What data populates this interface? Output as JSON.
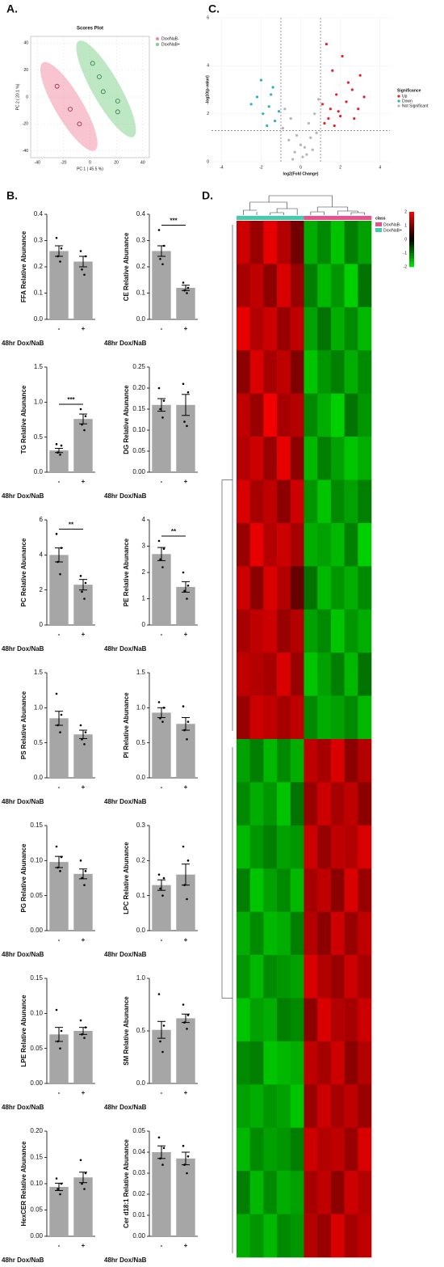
{
  "panel_labels": [
    "A.",
    "B.",
    "C.",
    "D."
  ],
  "chart_data": [
    {
      "type": "scatter",
      "title": "Scores Plot",
      "xlabel": "PC 1 ( 45.5 %)",
      "ylabel": "PC 2 ( 20.1 %)",
      "xlim": [
        -45,
        45
      ],
      "ylim": [
        -45,
        45
      ],
      "xticks": [
        -40,
        -20,
        0,
        20,
        40
      ],
      "yticks": [
        -40,
        -20,
        0,
        20,
        40
      ],
      "grid": true,
      "series": [
        {
          "name": "Dox/NaB-",
          "color": "#f08aa0",
          "x": [
            -25,
            -15,
            -8
          ],
          "y": [
            8,
            -9,
            -20
          ]
        },
        {
          "name": "Dox/NaB+",
          "color": "#7dd08a",
          "x": [
            2,
            7,
            10,
            21,
            21
          ],
          "y": [
            25,
            15,
            4,
            -3,
            -11
          ]
        }
      ]
    },
    {
      "type": "volcano",
      "xlabel": "log2(Fold Change)",
      "ylabel": "-log10(p-value)",
      "legend_title": "Significance",
      "xlim": [
        -4.5,
        4.5
      ],
      "ylim": [
        0,
        6
      ],
      "xticks": [
        -4,
        -2,
        0,
        2,
        4
      ],
      "yticks": [
        0,
        2,
        4,
        6
      ],
      "vlines": [
        -1,
        1
      ],
      "hline": 1.3,
      "series": [
        {
          "name": "Up",
          "color": "#e8202a",
          "x": [
            1.2,
            1.5,
            1.8,
            2.0,
            2.3,
            2.6,
            1.4,
            2.9,
            3.2,
            1.6,
            2.1,
            1.3,
            2.4,
            1.9,
            3.0,
            1.7,
            2.7,
            1.1
          ],
          "y": [
            1.6,
            2.2,
            2.8,
            1.9,
            2.5,
            3.0,
            1.8,
            2.2,
            2.7,
            3.8,
            4.4,
            4.9,
            3.3,
            2.1,
            3.6,
            1.5,
            1.8,
            2.4
          ]
        },
        {
          "name": "Down",
          "color": "#2ab0c8",
          "x": [
            -1.3,
            -1.6,
            -1.9,
            -2.2,
            -1.4,
            -2.0,
            -1.1,
            -1.7,
            -2.5,
            -1.5
          ],
          "y": [
            1.7,
            2.3,
            2.0,
            2.7,
            3.1,
            3.4,
            2.1,
            1.5,
            2.4,
            2.8
          ]
        },
        {
          "name": "Not Significant",
          "color": "#b5b5b5",
          "x": [
            -0.3,
            0.2,
            0.5,
            -0.6,
            0.1,
            0.8,
            -0.9,
            0.4,
            -0.2,
            0.7,
            -0.5,
            0.3,
            0.9,
            -0.8,
            0.0,
            0.6,
            -0.4
          ],
          "y": [
            0.4,
            0.6,
            1.0,
            0.9,
            0.2,
            1.2,
            1.4,
            1.6,
            1.1,
            2.0,
            1.8,
            0.3,
            2.6,
            2.2,
            0.7,
            0.5,
            0.1
          ]
        }
      ]
    },
    {
      "type": "bar",
      "ylabel": "FFA Relative Abunance",
      "xlabel": "48hr Dox/NaB",
      "categories": [
        "-",
        "+"
      ],
      "values": [
        0.26,
        0.22
      ],
      "errors": [
        0.02,
        0.02
      ],
      "points": [
        [
          0.31,
          0.27,
          0.24,
          0.22
        ],
        [
          0.26,
          0.24,
          0.19,
          0.17
        ]
      ],
      "color": "#a6a6a6",
      "ylim": [
        0,
        0.4
      ],
      "yticks": [
        {
          "value": 0,
          "label": "0.0"
        },
        0.1,
        0.2,
        0.3,
        0.4
      ]
    },
    {
      "type": "bar",
      "ylabel": "CE Relative Abunance",
      "xlabel": "48hr Dox/NaB",
      "categories": [
        "-",
        "+"
      ],
      "values": [
        0.26,
        0.12
      ],
      "errors": [
        0.02,
        0.01
      ],
      "points": [
        [
          0.34,
          0.28,
          0.23,
          0.21
        ],
        [
          0.14,
          0.12,
          0.11,
          0.1
        ]
      ],
      "color": "#a6a6a6",
      "significance": "***",
      "ylim": [
        0,
        0.4
      ],
      "yticks": [
        {
          "value": 0,
          "label": "0.0"
        },
        0.1,
        0.2,
        0.3,
        0.4
      ]
    },
    {
      "type": "bar",
      "ylabel": "TG Relative Abunance",
      "xlabel": "48hr Dox/NaB",
      "categories": [
        "-",
        "+"
      ],
      "values": [
        0.31,
        0.76
      ],
      "errors": [
        0.03,
        0.07
      ],
      "points": [
        [
          0.4,
          0.38,
          0.28,
          0.25
        ],
        [
          0.9,
          0.8,
          0.68,
          0.6
        ]
      ],
      "color": "#a6a6a6",
      "significance": "***",
      "ylim": [
        0,
        1.5
      ],
      "yticks": [
        {
          "value": 0,
          "label": "0.0"
        },
        0.5,
        {
          "value": 1,
          "label": "1.0"
        },
        1.5
      ]
    },
    {
      "type": "bar",
      "ylabel": "DG Relative Abunance",
      "xlabel": "48hr Dox/NaB",
      "categories": [
        "-",
        "+"
      ],
      "values": [
        0.16,
        0.16
      ],
      "errors": [
        0.015,
        0.025
      ],
      "points": [
        [
          0.2,
          0.17,
          0.15,
          0.13
        ],
        [
          0.21,
          0.19,
          0.12,
          0.11
        ]
      ],
      "color": "#a6a6a6",
      "ylim": [
        0,
        0.25
      ],
      "yticks": [
        {
          "value": 0,
          "label": "0.00"
        },
        0.05,
        {
          "value": 0.1,
          "label": "0.10"
        },
        0.15,
        {
          "value": 0.2,
          "label": "0.20"
        },
        0.25
      ]
    },
    {
      "type": "bar",
      "ylabel": "PC Relative Abunance",
      "xlabel": "48hr Dox/NaB",
      "categories": [
        "-",
        "+"
      ],
      "values": [
        4.0,
        2.3
      ],
      "errors": [
        0.4,
        0.3
      ],
      "points": [
        [
          5.2,
          4.4,
          3.6,
          2.9
        ],
        [
          2.8,
          2.4,
          1.9,
          1.5
        ]
      ],
      "color": "#a6a6a6",
      "significance": "**",
      "ylim": [
        0,
        6
      ],
      "yticks": [
        0,
        2,
        4,
        6
      ]
    },
    {
      "type": "bar",
      "ylabel": "PE Relative Abunance",
      "xlabel": "48hr Dox/NaB",
      "categories": [
        "-",
        "+"
      ],
      "values": [
        2.7,
        1.45
      ],
      "errors": [
        0.25,
        0.2
      ],
      "points": [
        [
          3.2,
          2.9,
          2.5,
          2.2
        ],
        [
          2.0,
          1.5,
          1.3,
          1.0
        ]
      ],
      "color": "#a6a6a6",
      "significance": "**",
      "ylim": [
        0,
        4
      ],
      "yticks": [
        0,
        1,
        2,
        3,
        4
      ]
    },
    {
      "type": "bar",
      "ylabel": "PS Relative Abunance",
      "xlabel": "48hr Dox/NaB",
      "categories": [
        "-",
        "+"
      ],
      "values": [
        0.85,
        0.62
      ],
      "errors": [
        0.1,
        0.06
      ],
      "points": [
        [
          1.2,
          0.9,
          0.75,
          0.65
        ],
        [
          0.75,
          0.65,
          0.55,
          0.48
        ]
      ],
      "color": "#a6a6a6",
      "ylim": [
        0,
        1.5
      ],
      "yticks": [
        {
          "value": 0,
          "label": "0.0"
        },
        0.5,
        {
          "value": 1,
          "label": "1.0"
        },
        1.5
      ]
    },
    {
      "type": "bar",
      "ylabel": "PI Relative Abunance",
      "xlabel": "48hr Dox/NaB",
      "categories": [
        "-",
        "+"
      ],
      "values": [
        0.93,
        0.77
      ],
      "errors": [
        0.07,
        0.09
      ],
      "points": [
        [
          1.08,
          1.0,
          0.85,
          0.8
        ],
        [
          1.02,
          0.8,
          0.68,
          0.55
        ]
      ],
      "color": "#a6a6a6",
      "ylim": [
        0,
        1.5
      ],
      "yticks": [
        {
          "value": 0,
          "label": "0.0"
        },
        0.5,
        {
          "value": 1,
          "label": "1.0"
        },
        1.5
      ]
    },
    {
      "type": "bar",
      "ylabel": "PG Relative Abunance",
      "xlabel": "48hr Dox/NaB",
      "categories": [
        "-",
        "+"
      ],
      "values": [
        0.098,
        0.081
      ],
      "errors": [
        0.008,
        0.007
      ],
      "points": [
        [
          0.12,
          0.105,
          0.09,
          0.085
        ],
        [
          0.1,
          0.085,
          0.075,
          0.065
        ]
      ],
      "color": "#a6a6a6",
      "ylim": [
        0,
        0.15
      ],
      "yticks": [
        {
          "value": 0,
          "label": "0.00"
        },
        0.05,
        {
          "value": 0.1,
          "label": "0.10"
        },
        0.15
      ]
    },
    {
      "type": "bar",
      "ylabel": "LPC Relative Abunance",
      "xlabel": "48hr Dox/NaB",
      "categories": [
        "-",
        "+"
      ],
      "values": [
        0.13,
        0.16
      ],
      "errors": [
        0.015,
        0.03
      ],
      "points": [
        [
          0.16,
          0.15,
          0.12,
          0.1
        ],
        [
          0.24,
          0.2,
          0.13,
          0.09
        ]
      ],
      "color": "#a6a6a6",
      "ylim": [
        0,
        0.3
      ],
      "yticks": [
        {
          "value": 0,
          "label": "0.0"
        },
        0.1,
        0.2,
        0.3
      ]
    },
    {
      "type": "bar",
      "ylabel": "LPE Relative Abunance",
      "xlabel": "48hr Dox/NaB",
      "categories": [
        "-",
        "+"
      ],
      "values": [
        0.07,
        0.075
      ],
      "errors": [
        0.01,
        0.005
      ],
      "points": [
        [
          0.105,
          0.075,
          0.06,
          0.05
        ],
        [
          0.09,
          0.08,
          0.07,
          0.065
        ]
      ],
      "color": "#a6a6a6",
      "ylim": [
        0,
        0.15
      ],
      "yticks": [
        {
          "value": 0,
          "label": "0.00"
        },
        0.05,
        {
          "value": 0.1,
          "label": "0.10"
        },
        0.15
      ]
    },
    {
      "type": "bar",
      "ylabel": "SM Relative Abunance",
      "xlabel": "48hr Dox/NaB",
      "categories": [
        "-",
        "+"
      ],
      "values": [
        0.51,
        0.62
      ],
      "errors": [
        0.08,
        0.04
      ],
      "points": [
        [
          0.85,
          0.55,
          0.4,
          0.3
        ],
        [
          0.75,
          0.65,
          0.58,
          0.52
        ]
      ],
      "color": "#a6a6a6",
      "ylim": [
        0,
        1
      ],
      "yticks": [
        {
          "value": 0,
          "label": "0.0"
        },
        0.5,
        {
          "value": 1,
          "label": "1.0"
        }
      ]
    },
    {
      "type": "bar",
      "ylabel": "HexCER Relative Abunance",
      "xlabel": "48hr Dox/NaB",
      "categories": [
        "-",
        "+"
      ],
      "values": [
        0.094,
        0.112
      ],
      "errors": [
        0.007,
        0.01
      ],
      "points": [
        [
          0.11,
          0.1,
          0.09,
          0.08
        ],
        [
          0.145,
          0.12,
          0.1,
          0.09
        ]
      ],
      "color": "#a6a6a6",
      "ylim": [
        0,
        0.2
      ],
      "yticks": [
        {
          "value": 0,
          "label": "0.00"
        },
        0.05,
        {
          "value": 0.1,
          "label": "0.10"
        },
        0.15,
        {
          "value": 0.2,
          "label": "0.20"
        }
      ]
    },
    {
      "type": "bar",
      "ylabel": "Cer d18:1 Relative Abunance",
      "xlabel": "48hr Dox/NaB",
      "categories": [
        "-",
        "+"
      ],
      "values": [
        0.04,
        0.037
      ],
      "errors": [
        0.003,
        0.003
      ],
      "points": [
        [
          0.047,
          0.042,
          0.037,
          0.034
        ],
        [
          0.043,
          0.038,
          0.034,
          0.03
        ]
      ],
      "color": "#a6a6a6",
      "ylim": [
        0,
        0.05
      ],
      "yticks": [
        {
          "value": 0,
          "label": "0.00"
        },
        0.01,
        0.02,
        0.03,
        0.04,
        0.05
      ]
    },
    {
      "type": "heatmap",
      "legend_title": "class",
      "classes": [
        {
          "name": "Dox/NaB-",
          "color": "#ee4d8f"
        },
        {
          "name": "Dox/NaB+",
          "color": "#3fcfb0"
        }
      ],
      "column_class": [
        1,
        1,
        1,
        1,
        1,
        0,
        0,
        0,
        0,
        0
      ],
      "colors": {
        "low": "#00e600",
        "mid": "#000000",
        "high": "#ff0000"
      },
      "clim": [
        -2,
        2
      ],
      "scale_ticks": [
        2,
        1,
        0,
        -1,
        -2
      ],
      "values": [
        [
          1.6,
          1.2,
          1.8,
          1.4,
          0.9,
          -1.5,
          -1.2,
          -1.7,
          -1.1,
          -1.4
        ],
        [
          1.3,
          1.5,
          1.1,
          1.7,
          1.2,
          -1.1,
          -1.6,
          -1.3,
          -1.8,
          -1.0
        ],
        [
          1.8,
          1.4,
          1.6,
          1.2,
          1.5,
          -1.4,
          -1.0,
          -1.5,
          -1.2,
          -1.6
        ],
        [
          1.1,
          1.7,
          1.3,
          1.5,
          1.0,
          -1.7,
          -1.3,
          -1.1,
          -1.5,
          -1.2
        ],
        [
          1.5,
          1.2,
          1.9,
          1.3,
          1.4,
          -1.2,
          -1.5,
          -1.8,
          -1.0,
          -1.3
        ],
        [
          1.4,
          1.6,
          1.2,
          1.8,
          1.1,
          -1.6,
          -1.1,
          -1.4,
          -1.7,
          -1.5
        ],
        [
          1.7,
          1.3,
          1.5,
          1.1,
          1.6,
          -1.3,
          -1.7,
          -1.2,
          -1.4,
          -1.1
        ],
        [
          1.2,
          1.8,
          1.4,
          1.6,
          1.3,
          -1.5,
          -1.4,
          -1.6,
          -1.1,
          -1.8
        ],
        [
          1.6,
          1.1,
          1.7,
          1.4,
          0.8,
          -1.0,
          -1.6,
          -1.3,
          -1.5,
          -1.2
        ],
        [
          1.3,
          1.5,
          1.6,
          1.2,
          1.4,
          -1.4,
          -1.2,
          -1.7,
          -1.3,
          -1.5
        ],
        [
          1.5,
          1.4,
          1.3,
          1.7,
          1.2,
          -1.7,
          -1.4,
          -1.1,
          -1.6,
          -1.0
        ],
        [
          1.2,
          1.6,
          1.5,
          1.3,
          1.5,
          -1.2,
          -1.5,
          -1.4,
          -1.2,
          -1.6
        ],
        [
          -1.4,
          -1.1,
          -1.6,
          -1.2,
          -1.5,
          1.5,
          1.3,
          1.7,
          1.1,
          1.4
        ],
        [
          -1.2,
          -1.5,
          -1.3,
          -1.7,
          -1.0,
          1.2,
          1.6,
          1.3,
          1.5,
          1.1
        ],
        [
          -1.6,
          -1.3,
          -1.1,
          -1.4,
          -1.3,
          1.6,
          1.2,
          1.5,
          1.4,
          1.7
        ],
        [
          -1.1,
          -1.7,
          -1.4,
          -1.2,
          -1.6,
          1.3,
          1.5,
          1.1,
          1.7,
          1.2
        ],
        [
          -1.5,
          -1.2,
          -1.6,
          -1.5,
          -1.1,
          1.4,
          1.1,
          1.6,
          1.2,
          1.5
        ],
        [
          -1.3,
          -1.6,
          -1.2,
          -1.3,
          -1.4,
          1.7,
          1.4,
          1.2,
          1.6,
          1.3
        ],
        [
          -1.7,
          -1.4,
          -1.5,
          -1.1,
          -1.2,
          1.1,
          1.7,
          1.4,
          1.3,
          1.6
        ],
        [
          -1.2,
          -1.1,
          -1.7,
          -1.6,
          -1.5,
          1.5,
          1.3,
          1.6,
          1.1,
          1.4
        ],
        [
          -1.4,
          -1.5,
          -1.3,
          -1.4,
          -1.7,
          1.2,
          1.6,
          1.3,
          1.5,
          1.2
        ],
        [
          -1.6,
          -1.2,
          -1.4,
          -1.3,
          -1.1,
          1.6,
          1.4,
          1.5,
          1.2,
          1.7
        ],
        [
          -1.1,
          -1.6,
          -1.2,
          -1.5,
          -1.4,
          1.3,
          1.5,
          1.1,
          1.6,
          1.4
        ],
        [
          -1.5,
          -1.3,
          -1.6,
          -1.2,
          -1.3,
          1.4,
          1.2,
          1.7,
          1.3,
          1.5
        ]
      ]
    }
  ]
}
